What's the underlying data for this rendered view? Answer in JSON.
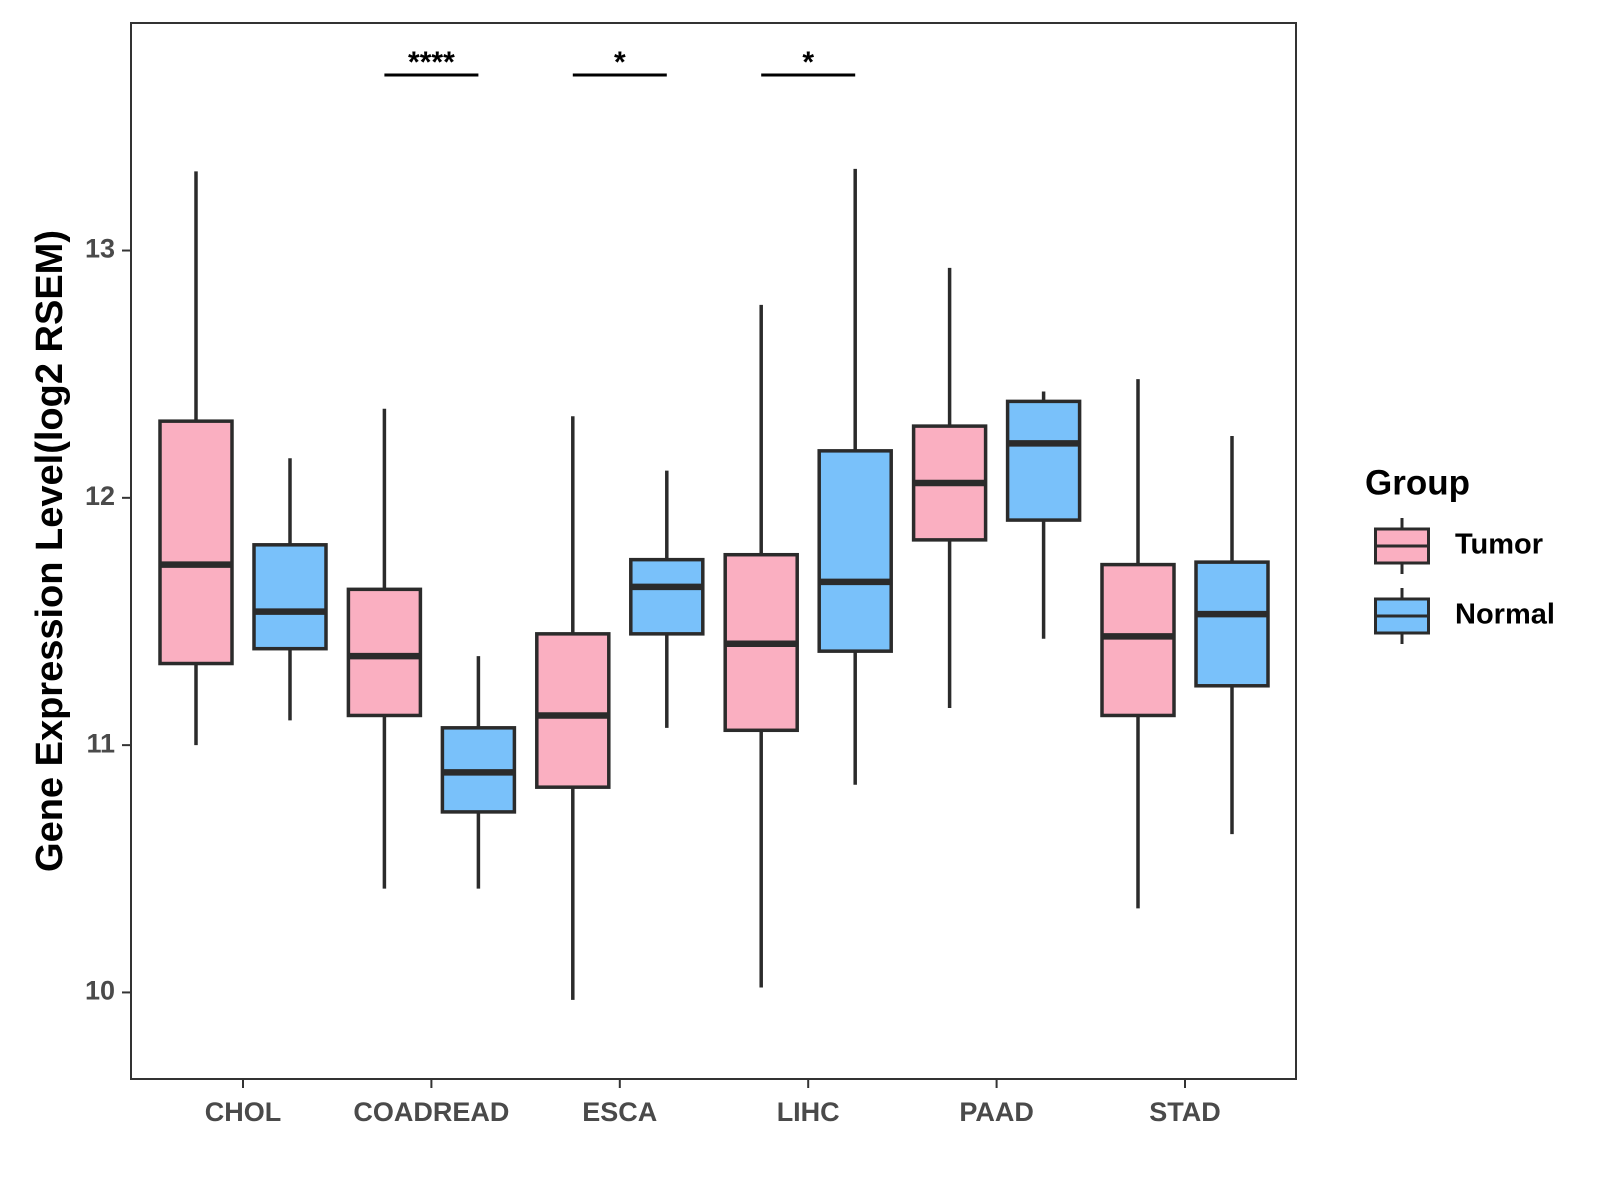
{
  "chart_data": {
    "type": "boxplot",
    "title": "",
    "xlabel": "",
    "ylabel": "Gene Expression Level(log2 RSEM)",
    "ylim": [
      9.65,
      13.92
    ],
    "yticks": [
      10,
      11,
      12,
      13
    ],
    "categories": [
      "CHOL",
      "COADREAD",
      "ESCA",
      "LIHC",
      "PAAD",
      "STAD"
    ],
    "legend": {
      "title": "Group",
      "position": "right",
      "entries": [
        {
          "name": "Tumor",
          "color": "#FAAFC1"
        },
        {
          "name": "Normal",
          "color": "#79C1FA"
        }
      ]
    },
    "series": [
      {
        "name": "Tumor",
        "color": "#FAAFC1",
        "boxes": [
          {
            "min": 11.0,
            "q1": 11.33,
            "median": 11.73,
            "q3": 12.31,
            "max": 13.32
          },
          {
            "min": 10.42,
            "q1": 11.12,
            "median": 11.36,
            "q3": 11.63,
            "max": 12.36
          },
          {
            "min": 9.97,
            "q1": 10.83,
            "median": 11.12,
            "q3": 11.45,
            "max": 12.33
          },
          {
            "min": 10.02,
            "q1": 11.06,
            "median": 11.41,
            "q3": 11.77,
            "max": 12.78
          },
          {
            "min": 11.15,
            "q1": 11.83,
            "median": 12.06,
            "q3": 12.29,
            "max": 12.93
          },
          {
            "min": 10.34,
            "q1": 11.12,
            "median": 11.44,
            "q3": 11.73,
            "max": 12.48
          }
        ]
      },
      {
        "name": "Normal",
        "color": "#79C1FA",
        "boxes": [
          {
            "min": 11.1,
            "q1": 11.39,
            "median": 11.54,
            "q3": 11.81,
            "max": 12.16
          },
          {
            "min": 10.42,
            "q1": 10.73,
            "median": 10.89,
            "q3": 11.07,
            "max": 11.36
          },
          {
            "min": 11.07,
            "q1": 11.45,
            "median": 11.64,
            "q3": 11.75,
            "max": 12.11
          },
          {
            "min": 10.84,
            "q1": 11.38,
            "median": 11.66,
            "q3": 12.19,
            "max": 13.33
          },
          {
            "min": 11.43,
            "q1": 11.91,
            "median": 12.22,
            "q3": 12.39,
            "max": 12.43
          },
          {
            "min": 10.64,
            "q1": 11.24,
            "median": 11.53,
            "q3": 11.74,
            "max": 12.25
          }
        ]
      }
    ],
    "significance": [
      {
        "category": "COADREAD",
        "label": "****"
      },
      {
        "category": "ESCA",
        "label": "*"
      },
      {
        "category": "LIHC",
        "label": "*"
      }
    ]
  }
}
